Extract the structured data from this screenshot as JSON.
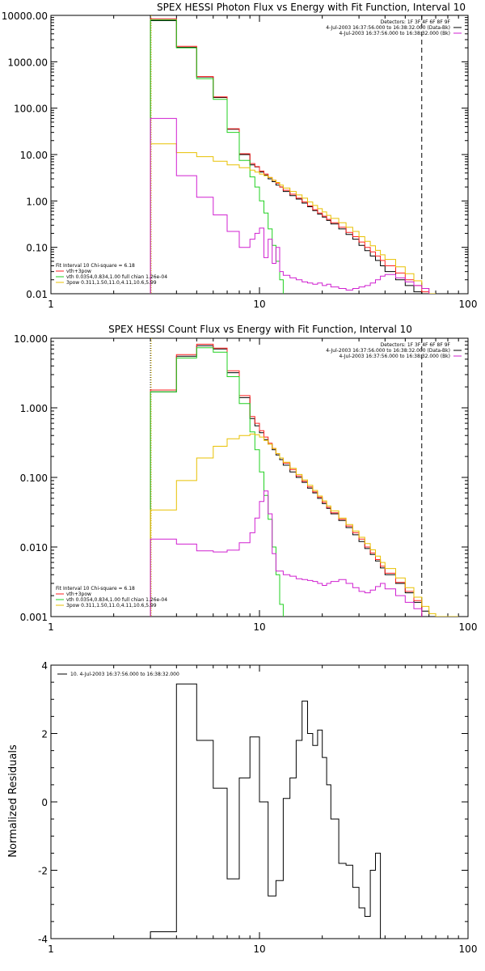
{
  "chart_data": [
    {
      "type": "line",
      "step": true,
      "title": "SPEX HESSI Photon Flux vs Energy with Fit Function, Interval 10",
      "xscale": "log",
      "yscale": "log",
      "xlim": [
        1,
        100
      ],
      "ylim": [
        0.01,
        10000
      ],
      "xticks": [
        1,
        10,
        100
      ],
      "xticklabels": [
        "1",
        "10",
        "100"
      ],
      "yticks": [
        0.01,
        0.1,
        1,
        10,
        100,
        1000,
        10000
      ],
      "yticklabels": [
        "0.01",
        "0.10",
        "1.00",
        "10.00",
        "100.00",
        "1000.00",
        "10000.00"
      ],
      "vlines": [
        {
          "x": 3,
          "style": "dotted",
          "color": "#000000"
        },
        {
          "x": 3,
          "style": "dotted",
          "color": "#e8c000"
        },
        {
          "x": 60,
          "style": "dashed",
          "color": "#000000"
        }
      ],
      "legend_topright": [
        {
          "label": "Detectors: 1F 3F 4F 6F 8F 9F",
          "color": ""
        },
        {
          "label": "4-Jul-2003 16:37:56.000 to 16:38:32.000 (Data-Bk)",
          "color": "#000000"
        },
        {
          "label": "4-Jul-2003 16:37:56.000 to 16:38:32.000 (Bk)",
          "color": "#d020d0"
        }
      ],
      "legend_bottomleft": [
        {
          "label": "Fit Interval 10   Chi-square = 6.18",
          "color": ""
        },
        {
          "label": "vth+3pow",
          "color": "#ff2020"
        },
        {
          "label": "vth 0.0354,0.834,1.00  full chian 1.26e-04",
          "color": "#20d020"
        },
        {
          "label": "3pow 0.311,1.50,11.0,4.11,10.6,5.99",
          "color": "#e8c000"
        }
      ],
      "edges": [
        3,
        3.5,
        4,
        4.5,
        5,
        5.5,
        6,
        6.5,
        7,
        7.5,
        8,
        8.5,
        9,
        9.5,
        10,
        10.5,
        11,
        11.5,
        12,
        12.5,
        13,
        14,
        15,
        16,
        17,
        18,
        19,
        20,
        21,
        22,
        24,
        26,
        28,
        30,
        32,
        34,
        36,
        38,
        40,
        45,
        50,
        55,
        60,
        65,
        70
      ],
      "series": [
        {
          "name": "4-Jul-2003 16:37:56.000 to 16:38:32.000 (Data-Bk)",
          "color": "#000000",
          "values": [
            7700,
            7700,
            2050,
            2050,
            470,
            470,
            170,
            170,
            35,
            35,
            10,
            10,
            6,
            5.4,
            4.2,
            3.6,
            3.0,
            2.6,
            2.2,
            2.0,
            1.6,
            1.3,
            1.1,
            0.9,
            0.75,
            0.62,
            0.52,
            0.45,
            0.38,
            0.32,
            0.25,
            0.19,
            0.15,
            0.11,
            0.085,
            0.065,
            0.052,
            0.04,
            0.03,
            0.02,
            0.015,
            0.011,
            0.009,
            null
          ]
        },
        {
          "name": "vth+3pow",
          "color": "#ff2020",
          "values": [
            8400,
            8400,
            2150,
            2150,
            480,
            480,
            175,
            175,
            36,
            36,
            10.4,
            10.4,
            6.4,
            5.5,
            4.4,
            3.8,
            3.2,
            2.8,
            2.4,
            2.0,
            1.7,
            1.4,
            1.15,
            0.95,
            0.78,
            0.65,
            0.55,
            0.47,
            0.4,
            0.34,
            0.27,
            0.21,
            0.17,
            0.13,
            0.1,
            0.08,
            0.065,
            0.052,
            0.04,
            0.028,
            0.02,
            0.015,
            0.011,
            0.008
          ]
        },
        {
          "name": "vth 0.0354,0.834,1.00  full chian 1.26e-04",
          "color": "#20d020",
          "values": [
            8000,
            8000,
            2000,
            2000,
            430,
            430,
            155,
            155,
            30,
            30,
            7.5,
            7.5,
            3.3,
            2.0,
            1.0,
            0.55,
            0.25,
            0.11,
            0.05,
            0.02,
            null,
            null,
            null,
            null,
            null,
            null,
            null,
            null,
            null,
            null,
            null,
            null,
            null,
            null,
            null,
            null,
            null,
            null,
            null,
            null,
            null,
            null,
            null,
            null
          ]
        },
        {
          "name": "3pow 0.311,1.50,11.0,4.11,10.6,5.99",
          "color": "#e8c000",
          "values": [
            17,
            17,
            11,
            11,
            9,
            9,
            7.2,
            7.2,
            6,
            6,
            5.2,
            5.2,
            4.6,
            4.2,
            3.8,
            3.5,
            3.2,
            2.8,
            2.5,
            2.2,
            1.9,
            1.6,
            1.35,
            1.15,
            0.95,
            0.8,
            0.68,
            0.58,
            0.49,
            0.42,
            0.34,
            0.27,
            0.22,
            0.17,
            0.135,
            0.108,
            0.086,
            0.069,
            0.055,
            0.038,
            0.027,
            0.019,
            0.013,
            0.009
          ]
        },
        {
          "name": "4-Jul-2003 16:37:56.000 to 16:38:32.000 (Bk)",
          "color": "#d020d0",
          "values": [
            60,
            60,
            3.5,
            3.5,
            1.2,
            1.2,
            0.5,
            0.5,
            0.22,
            0.22,
            0.1,
            0.1,
            0.15,
            0.2,
            0.26,
            0.06,
            0.15,
            0.045,
            0.1,
            0.03,
            0.025,
            0.022,
            0.02,
            0.018,
            0.017,
            0.016,
            0.017,
            0.015,
            0.016,
            0.014,
            0.013,
            0.012,
            0.013,
            0.014,
            0.015,
            0.017,
            0.02,
            0.024,
            0.026,
            0.022,
            0.018,
            0.015,
            0.013,
            null
          ]
        }
      ]
    },
    {
      "type": "line",
      "step": true,
      "title": "SPEX HESSI Count Flux vs Energy with Fit Function, Interval 10",
      "xscale": "log",
      "yscale": "log",
      "xlim": [
        1,
        100
      ],
      "ylim": [
        0.001,
        10
      ],
      "xticks": [
        1,
        10,
        100
      ],
      "xticklabels": [
        "1",
        "10",
        "100"
      ],
      "yticks": [
        0.001,
        0.01,
        0.1,
        1,
        10
      ],
      "yticklabels": [
        "0.001",
        "0.010",
        "0.100",
        "1.000",
        "10.000"
      ],
      "vlines": [
        {
          "x": 3,
          "style": "dotted",
          "color": "#000000"
        },
        {
          "x": 3,
          "style": "dotted",
          "color": "#e8c000"
        },
        {
          "x": 60,
          "style": "dashed",
          "color": "#000000"
        }
      ],
      "legend_topright": [
        {
          "label": "Detectors: 1F 3F 4F 6F 8F 9F",
          "color": ""
        },
        {
          "label": "4-Jul-2003 16:37:56.000 to 16:38:32.000 (Data-Bk)",
          "color": "#000000"
        },
        {
          "label": "4-Jul-2003 16:37:56.000 to 16:38:32.000 (Bk)",
          "color": "#d020d0"
        }
      ],
      "legend_bottomleft": [
        {
          "label": "Fit Interval 10   Chi-square = 6.18",
          "color": ""
        },
        {
          "label": "vth+3pow",
          "color": "#ff2020"
        },
        {
          "label": "vth 0.0354,0.834,1.00  full chian 1.26e-04",
          "color": "#20d020"
        },
        {
          "label": "3pow 0.311,1.50,11.0,4.11,10.6,5.99",
          "color": "#e8c000"
        }
      ],
      "edges": [
        3,
        4,
        5,
        6,
        7,
        7.5,
        8,
        8.5,
        9,
        9.5,
        10,
        10.5,
        11,
        11.5,
        12,
        12.5,
        13,
        14,
        15,
        16,
        17,
        18,
        19,
        20,
        21,
        22,
        24,
        26,
        28,
        30,
        32,
        34,
        36,
        38,
        40,
        45,
        50,
        55,
        60,
        65,
        70,
        80,
        90
      ],
      "series": [
        {
          "name": "4-Jul-2003 16:37:56.000 to 16:38:32.000 (Data-Bk)",
          "color": "#000000",
          "values": [
            1.7,
            5.5,
            7.8,
            7.0,
            3.2,
            3.2,
            1.4,
            1.4,
            0.7,
            0.55,
            0.44,
            0.35,
            0.3,
            0.25,
            0.21,
            0.18,
            0.15,
            0.12,
            0.1,
            0.085,
            0.07,
            0.06,
            0.05,
            0.042,
            0.036,
            0.03,
            0.024,
            0.019,
            0.015,
            0.012,
            0.0095,
            0.0078,
            0.0063,
            0.005,
            0.004,
            0.003,
            0.0022,
            0.0016,
            0.0012,
            null,
            null,
            null
          ]
        },
        {
          "name": "vth+3pow",
          "color": "#ff2020",
          "values": [
            1.8,
            5.8,
            8.2,
            7.2,
            3.4,
            3.4,
            1.5,
            1.5,
            0.75,
            0.6,
            0.47,
            0.38,
            0.31,
            0.26,
            0.22,
            0.19,
            0.16,
            0.13,
            0.105,
            0.088,
            0.073,
            0.062,
            0.052,
            0.044,
            0.037,
            0.031,
            0.025,
            0.02,
            0.016,
            0.013,
            0.01,
            0.0082,
            0.0066,
            0.0053,
            0.0042,
            0.0031,
            0.0023,
            0.0017,
            null,
            null,
            null,
            null
          ]
        },
        {
          "name": "vth 0.0354,0.834,1.00  full chian 1.26e-04",
          "color": "#20d020",
          "values": [
            1.7,
            5.2,
            7.3,
            6.3,
            2.8,
            2.8,
            1.15,
            1.15,
            0.45,
            0.25,
            0.12,
            0.055,
            0.025,
            0.01,
            0.004,
            0.0015,
            null,
            null,
            null,
            null,
            null,
            null,
            null,
            null,
            null,
            null,
            null,
            null,
            null,
            null,
            null,
            null,
            null,
            null,
            null,
            null,
            null,
            null,
            null,
            null,
            null,
            null
          ]
        },
        {
          "name": "3pow 0.311,1.50,11.0,4.11,10.6,5.99",
          "color": "#e8c000",
          "values": [
            0.034,
            0.09,
            0.19,
            0.28,
            0.36,
            0.36,
            0.4,
            0.4,
            0.42,
            0.41,
            0.38,
            0.34,
            0.3,
            0.26,
            0.22,
            0.19,
            0.165,
            0.135,
            0.11,
            0.092,
            0.077,
            0.065,
            0.054,
            0.046,
            0.039,
            0.033,
            0.026,
            0.021,
            0.017,
            0.0138,
            0.0112,
            0.0091,
            0.0074,
            0.006,
            0.0049,
            0.0036,
            0.0026,
            0.0019,
            0.0014,
            0.0011,
            0.0009,
            0.0007
          ]
        },
        {
          "name": "4-Jul-2003 16:37:56.000 to 16:38:32.000 (Bk)",
          "color": "#d020d0",
          "values": [
            0.013,
            0.011,
            0.0088,
            0.0085,
            0.009,
            0.009,
            0.0115,
            0.0115,
            0.016,
            0.026,
            0.045,
            0.064,
            0.03,
            0.008,
            0.0045,
            0.0045,
            0.004,
            0.0038,
            0.0035,
            0.0034,
            0.0033,
            0.0032,
            0.003,
            0.0028,
            0.003,
            0.0032,
            0.0034,
            0.003,
            0.0026,
            0.0023,
            0.0022,
            0.0024,
            0.0027,
            0.003,
            0.0025,
            0.002,
            0.0016,
            0.0013,
            null,
            null,
            null,
            null
          ]
        }
      ]
    },
    {
      "type": "line",
      "step": true,
      "title": "",
      "ylabel": "Normalized Residuals",
      "xscale": "log",
      "yscale": "linear",
      "xlim": [
        1,
        100
      ],
      "ylim": [
        -4,
        4
      ],
      "xticks": [
        1,
        10,
        100
      ],
      "xticklabels": [
        "1",
        "10",
        "100"
      ],
      "yticks": [
        -4,
        -2,
        0,
        2,
        4
      ],
      "yticklabels": [
        "-4",
        "-2",
        "0",
        "2",
        "4"
      ],
      "legend_topleft": [
        {
          "label": "10.  4-Jul-2003 16:37:56.000 to 16:38:32.000",
          "color": "#000000"
        }
      ],
      "edges": [
        3,
        4,
        5,
        6,
        7,
        8,
        9,
        10,
        11,
        12,
        13,
        14,
        15,
        16,
        17,
        18,
        19,
        20,
        21,
        22,
        24,
        26,
        28,
        30,
        32,
        34,
        36,
        38,
        40,
        45,
        50,
        55,
        60
      ],
      "series": [
        {
          "name": "10.  4-Jul-2003 16:37:56.000 to 16:38:32.000",
          "color": "#000000",
          "values": [
            -3.8,
            3.45,
            1.8,
            0.4,
            -2.25,
            0.7,
            1.9,
            0.0,
            -2.75,
            -2.3,
            0.1,
            0.7,
            1.8,
            2.95,
            2.0,
            1.65,
            2.1,
            1.3,
            0.5,
            -0.5,
            -1.8,
            -1.85,
            -2.5,
            -3.1,
            -3.35,
            -2.0,
            -1.5,
            -4.0,
            null,
            null,
            null,
            null
          ]
        }
      ]
    }
  ]
}
